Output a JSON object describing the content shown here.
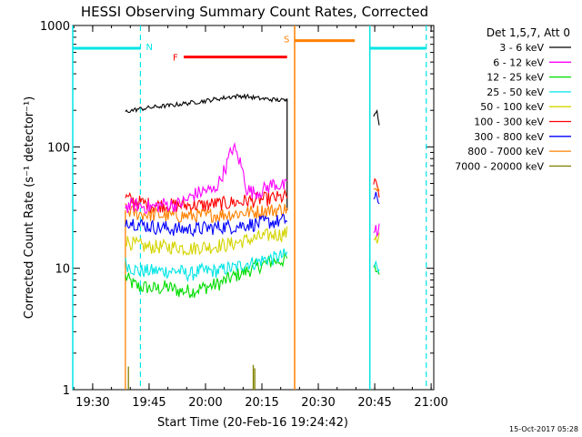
{
  "chart_data": {
    "type": "line",
    "title": "HESSI Observing Summary Count Rates, Corrected",
    "xlabel": "Start Time (20-Feb-16 19:24:42)",
    "ylabel": "Corrected Count Rate (s⁻¹ detector⁻¹)",
    "x_unit": "minutes after 19:24:42",
    "xlim": [
      0,
      96
    ],
    "ylim": [
      1,
      1000
    ],
    "yscale": "log",
    "x_ticks": [
      {
        "v": 5.3,
        "label": "19:30"
      },
      {
        "v": 20.3,
        "label": "19:45"
      },
      {
        "v": 35.3,
        "label": "20:00"
      },
      {
        "v": 50.3,
        "label": "20:15"
      },
      {
        "v": 65.3,
        "label": "20:30"
      },
      {
        "v": 80.3,
        "label": "20:45"
      },
      {
        "v": 95.3,
        "label": "21:00"
      }
    ],
    "y_ticks": [
      {
        "v": 1,
        "label": "1"
      },
      {
        "v": 10,
        "label": "10"
      },
      {
        "v": 100,
        "label": "100"
      },
      {
        "v": 1000,
        "label": "1000"
      }
    ],
    "legend_title": "Det 1,5,7, Att 0",
    "legend_position": "right",
    "series": [
      {
        "name": "3 - 6 keV",
        "color": "#000000",
        "segments": [
          {
            "x0": 14.0,
            "x1": 57.0,
            "y": [
              195,
              200,
              205,
              208,
              212,
              215,
              218,
              220,
              225,
              228,
              232,
              236,
              240,
              245,
              250,
              255,
              260,
              262,
              260,
              255,
              250,
              248,
              245,
              243,
              240
            ]
          },
          {
            "x0": 80.0,
            "x1": 81.5,
            "y": [
              185,
              200,
              192,
              150
            ]
          }
        ]
      },
      {
        "name": "6 - 12 keV",
        "color": "#ff00ff",
        "segments": [
          {
            "x0": 14.0,
            "x1": 57.0,
            "y": [
              32,
              33,
              33,
              32,
              32,
              33,
              34,
              33,
              34,
              36,
              40,
              42,
              44,
              43,
              52,
              70,
              100,
              75,
              45,
              42,
              43,
              46,
              50,
              48,
              47
            ]
          },
          {
            "x0": 80.0,
            "x1": 81.5,
            "y": [
              20,
              22,
              18,
              21
            ]
          }
        ]
      },
      {
        "name": "12 - 25 keV",
        "color": "#00dd00",
        "segments": [
          {
            "x0": 14.0,
            "x1": 57.0,
            "y": [
              8.5,
              7.5,
              7,
              7,
              6.8,
              6.8,
              7,
              6.8,
              6.5,
              6.5,
              6.5,
              6.8,
              7,
              7.2,
              7.5,
              8,
              8.5,
              9,
              9.5,
              10,
              10.5,
              11,
              11.5,
              11.5,
              12
            ]
          },
          {
            "x0": 80.0,
            "x1": 81.5,
            "y": [
              9.5,
              10,
              9.3,
              9.8
            ]
          }
        ]
      },
      {
        "name": "25 - 50 keV",
        "color": "#00e5e5",
        "segments": [
          {
            "x0": 14.0,
            "x1": 57.0,
            "y": [
              11,
              10,
              9.5,
              9.5,
              9.5,
              9.5,
              9.5,
              9.5,
              9.5,
              9,
              9,
              9.5,
              9.5,
              9.5,
              9.5,
              10,
              10,
              10.5,
              11,
              11,
              11.5,
              12,
              12,
              12.5,
              13
            ]
          },
          {
            "x0": 80.0,
            "x1": 81.5,
            "y": [
              10,
              11,
              9.5,
              10.5
            ]
          }
        ]
      },
      {
        "name": "50 - 100 keV",
        "color": "#d4d400",
        "segments": [
          {
            "x0": 14.0,
            "x1": 57.0,
            "y": [
              17,
              16,
              15.5,
              15,
              15,
              15,
              15,
              15,
              15,
              14.5,
              14.5,
              15,
              15,
              15,
              15.5,
              15.5,
              16,
              16.5,
              17,
              17.5,
              18,
              18.5,
              19,
              19,
              19.5
            ]
          },
          {
            "x0": 80.0,
            "x1": 81.5,
            "y": [
              18,
              19,
              17,
              18.5
            ]
          }
        ]
      },
      {
        "name": "100 - 300 keV",
        "color": "#ff0000",
        "segments": [
          {
            "x0": 14.0,
            "x1": 57.0,
            "y": [
              38,
              36,
              35,
              34,
              33,
              33,
              33,
              33,
              33,
              33,
              33,
              33,
              33,
              34,
              34,
              34,
              35,
              35,
              36,
              36,
              37,
              37,
              38,
              38,
              39
            ]
          },
          {
            "x0": 80.0,
            "x1": 81.5,
            "y": [
              50,
              48,
              45,
              42
            ]
          }
        ]
      },
      {
        "name": "300 - 800 keV",
        "color": "#0000ff",
        "segments": [
          {
            "x0": 14.0,
            "x1": 57.0,
            "y": [
              25,
              24,
              23,
              22.5,
              22,
              21.5,
              21.5,
              21,
              21,
              21,
              21,
              21,
              21.5,
              21.5,
              22,
              22,
              22,
              22.5,
              23,
              23,
              23.5,
              24,
              24,
              24.5,
              25
            ]
          },
          {
            "x0": 80.0,
            "x1": 81.5,
            "y": [
              36,
              38,
              35,
              37
            ]
          }
        ]
      },
      {
        "name": "800 - 7000 keV",
        "color": "#ff8000",
        "segments": [
          {
            "x0": 14.0,
            "x1": 57.0,
            "y": [
              30,
              29,
              28,
              28,
              27.5,
              27.5,
              27,
              27,
              27,
              27,
              27,
              27,
              27,
              27.5,
              27.5,
              28,
              28,
              28.5,
              29,
              29,
              29.5,
              30,
              30,
              30.5,
              31
            ]
          },
          {
            "x0": 80.0,
            "x1": 81.5,
            "y": [
              42,
              44,
              40,
              43
            ]
          }
        ]
      },
      {
        "name": "7000 - 20000 keV",
        "color": "#808000",
        "segments": []
      }
    ],
    "spikes": [
      {
        "color": "#808000",
        "x": 14.8,
        "y": 1.55
      },
      {
        "color": "#808000",
        "x": 48.0,
        "y": 1.6
      },
      {
        "color": "#808000",
        "x": 48.4,
        "y": 1.5
      }
    ],
    "bands": [
      {
        "label": "N",
        "label_color": "#00e5e5",
        "color": "#00e5e5",
        "x0": 0,
        "x1": 18.0,
        "y": 650,
        "vlines": [
          0
        ]
      },
      {
        "label": "F",
        "label_color": "#ff0000",
        "color": "#ff0000",
        "x0": 29.5,
        "x1": 57.0,
        "y": 550,
        "vlines": []
      },
      {
        "label": "S",
        "label_color": "#ff8000",
        "color": "#ff8000",
        "x0": 59.0,
        "x1": 75.0,
        "y": 750,
        "vlines": [
          59.0
        ]
      },
      {
        "label": "",
        "label_color": "#00e5e5",
        "color": "#00e5e5",
        "x0": 79.0,
        "x1": 94.0,
        "y": 650,
        "vlines": [
          79.0
        ]
      }
    ],
    "dashed_vlines": [
      {
        "x": 18.0,
        "color": "#00e5e5"
      },
      {
        "x": 94.0,
        "color": "#00e5e5"
      }
    ],
    "orange_step": {
      "color": "#ff8000",
      "x": 14.0,
      "x_end": 57.0
    },
    "grid": false
  },
  "footer": {
    "timestamp": "15-Oct-2017 05:28"
  }
}
